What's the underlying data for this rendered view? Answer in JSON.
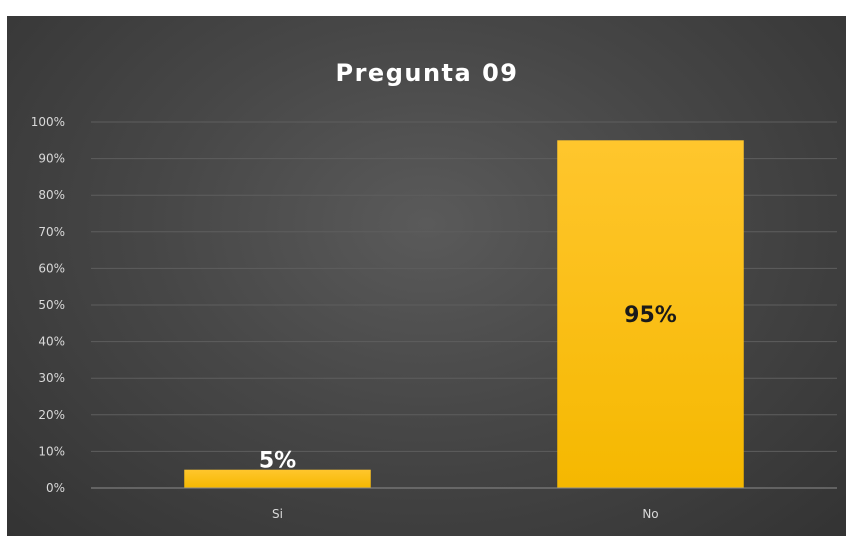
{
  "chart_data": {
    "type": "bar",
    "title": "Pregunta 09",
    "categories": [
      "Si",
      "No"
    ],
    "values": [
      5,
      95
    ],
    "data_labels": [
      "5%",
      "95%"
    ],
    "y_ticks": [
      "0%",
      "10%",
      "20%",
      "30%",
      "40%",
      "50%",
      "60%",
      "70%",
      "80%",
      "90%",
      "100%"
    ],
    "ylim": [
      0,
      100
    ],
    "grid": true,
    "legend": "none",
    "colors": {
      "bar_top": "#ffc62d",
      "bar_bottom": "#f5b800",
      "background": "#404040",
      "gridline": "#5e5e5e",
      "axis": "#8c8c8c",
      "label_inside": "#1a1a1a",
      "label_outside": "#ffffff"
    }
  }
}
